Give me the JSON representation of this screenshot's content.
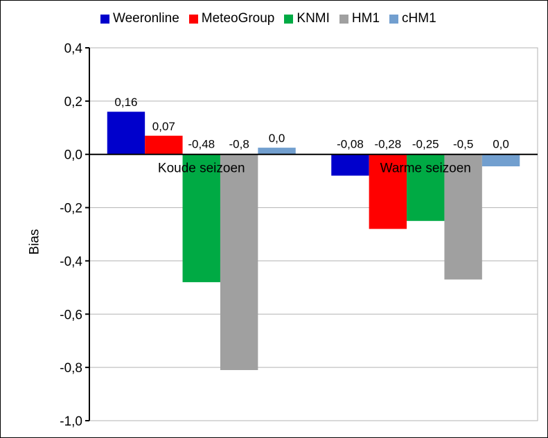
{
  "chart_data": {
    "type": "bar",
    "title": "",
    "xlabel": "",
    "ylabel": "Bias",
    "ylim": [
      -1.0,
      0.4
    ],
    "yticks": [
      0.4,
      0.2,
      0.0,
      -0.2,
      -0.4,
      -0.6,
      -0.8,
      -1.0
    ],
    "ytick_labels": [
      "0,4",
      "0,2",
      "0,0",
      "-0,2",
      "-0,4",
      "-0,6",
      "-0,8",
      "-1,0"
    ],
    "grid": true,
    "legend_position": "top",
    "categories": [
      "Koude seizoen",
      "Warme seizoen"
    ],
    "series": [
      {
        "name": "Weeronline",
        "color": "#0000cc",
        "values": [
          0.16,
          -0.08
        ],
        "labels": [
          "0,16",
          "-0,08"
        ]
      },
      {
        "name": "MeteoGroup",
        "color": "#ff0000",
        "values": [
          0.07,
          -0.28
        ],
        "labels": [
          "0,07",
          "-0,28"
        ]
      },
      {
        "name": "KNMI",
        "color": "#00aa44",
        "values": [
          -0.48,
          -0.25
        ],
        "labels": [
          "-0,48",
          "-0,25"
        ]
      },
      {
        "name": "HM1",
        "color": "#a0a0a0",
        "values": [
          -0.81,
          -0.47
        ],
        "labels": [
          "-0,8",
          "-0,5"
        ]
      },
      {
        "name": "cHM1",
        "color": "#729fcf",
        "values": [
          0.025,
          -0.045
        ],
        "labels": [
          "0,0",
          "0,0"
        ]
      }
    ]
  }
}
